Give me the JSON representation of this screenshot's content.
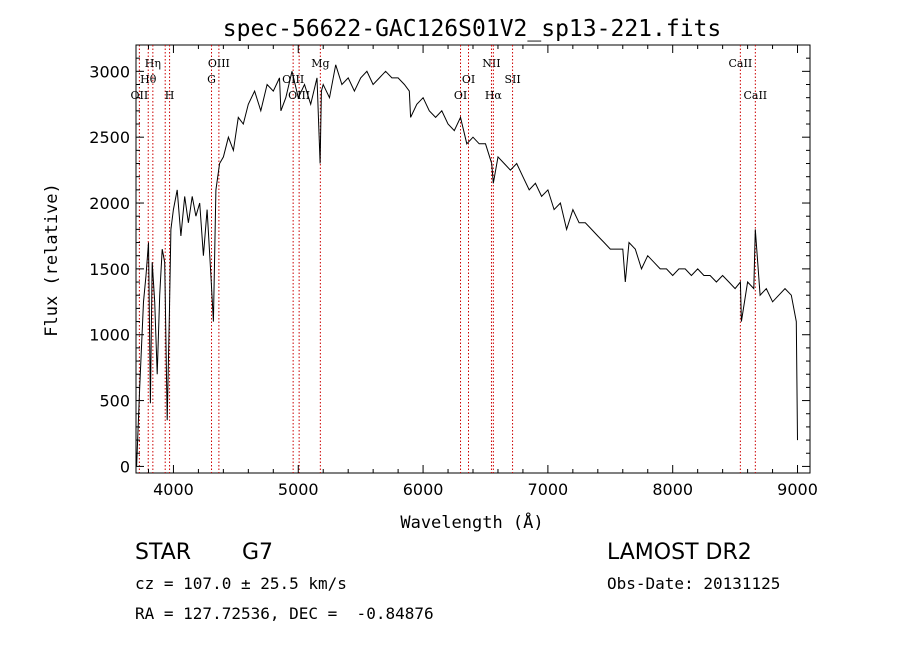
{
  "chart_data": {
    "type": "line",
    "title": "spec-56622-GAC126S01V2_sp13-221.fits",
    "xlabel": "Wavelength (Å)",
    "ylabel": "Flux (relative)",
    "xlim": [
      3700,
      9100
    ],
    "ylim": [
      -50,
      3200
    ],
    "xticks": [
      4000,
      5000,
      6000,
      7000,
      8000,
      9000
    ],
    "yticks": [
      0,
      500,
      1000,
      1500,
      2000,
      2500,
      3000
    ],
    "grid": false,
    "line_color": "#000000",
    "marker_color": "#cc0000",
    "series": [
      {
        "x": [
          3705,
          3730,
          3760,
          3780,
          3800,
          3815,
          3830,
          3850,
          3870,
          3890,
          3910,
          3930,
          3950,
          3968,
          3980,
          4000,
          4030,
          4060,
          4090,
          4120,
          4150,
          4180,
          4210,
          4240,
          4270,
          4300,
          4320,
          4340,
          4370,
          4400,
          4440,
          4480,
          4520,
          4560,
          4600,
          4650,
          4700,
          4750,
          4800,
          4850,
          4861,
          4900,
          4950,
          5000,
          5050,
          5100,
          5150,
          5175,
          5185,
          5200,
          5250,
          5300,
          5350,
          5400,
          5450,
          5500,
          5550,
          5600,
          5650,
          5700,
          5750,
          5800,
          5850,
          5890,
          5900,
          5950,
          6000,
          6050,
          6100,
          6150,
          6200,
          6250,
          6300,
          6350,
          6400,
          6450,
          6500,
          6550,
          6563,
          6600,
          6650,
          6700,
          6750,
          6800,
          6850,
          6900,
          6950,
          7000,
          7050,
          7100,
          7150,
          7200,
          7250,
          7300,
          7350,
          7400,
          7450,
          7500,
          7550,
          7600,
          7620,
          7650,
          7700,
          7750,
          7800,
          7850,
          7900,
          7950,
          8000,
          8050,
          8100,
          8150,
          8200,
          8250,
          8300,
          8350,
          8400,
          8450,
          8500,
          8542,
          8550,
          8600,
          8650,
          8662,
          8700,
          8750,
          8800,
          8850,
          8900,
          8950,
          8990,
          9000
        ],
        "y": [
          0,
          600,
          1250,
          1450,
          1700,
          480,
          1550,
          1250,
          700,
          1300,
          1650,
          1550,
          350,
          1200,
          1800,
          1950,
          2100,
          1750,
          2050,
          1850,
          2050,
          1900,
          2000,
          1600,
          1950,
          1450,
          1100,
          2100,
          2300,
          2350,
          2500,
          2400,
          2650,
          2600,
          2750,
          2850,
          2700,
          2900,
          2850,
          2950,
          2700,
          2800,
          3000,
          2800,
          2900,
          2750,
          2950,
          2300,
          2850,
          2900,
          2800,
          3050,
          2900,
          2950,
          2850,
          2950,
          3000,
          2900,
          2950,
          3000,
          2950,
          2950,
          2900,
          2850,
          2650,
          2750,
          2800,
          2700,
          2650,
          2700,
          2600,
          2550,
          2650,
          2450,
          2500,
          2450,
          2450,
          2300,
          2150,
          2350,
          2300,
          2250,
          2300,
          2200,
          2100,
          2150,
          2050,
          2100,
          1950,
          2000,
          1800,
          1950,
          1850,
          1850,
          1800,
          1750,
          1700,
          1650,
          1650,
          1650,
          1400,
          1700,
          1650,
          1500,
          1600,
          1550,
          1500,
          1500,
          1450,
          1500,
          1500,
          1450,
          1500,
          1450,
          1450,
          1400,
          1450,
          1400,
          1350,
          1400,
          1100,
          1400,
          1350,
          1800,
          1300,
          1350,
          1250,
          1300,
          1350,
          1300,
          1100,
          200
        ]
      }
    ],
    "lines": [
      {
        "x": 3727,
        "label": "OII",
        "row": 3
      },
      {
        "x": 3798,
        "label": "Hθ",
        "row": 2
      },
      {
        "x": 3835,
        "label": "Hη",
        "row": 1
      },
      {
        "x": 3934,
        "label": "",
        "row": 0
      },
      {
        "x": 3969,
        "label": "H",
        "row": 3
      },
      {
        "x": 4305,
        "label": "G",
        "row": 2
      },
      {
        "x": 4364,
        "label": "OIII",
        "row": 1
      },
      {
        "x": 4959,
        "label": "OIII",
        "row": 2
      },
      {
        "x": 5007,
        "label": "OIII",
        "row": 3
      },
      {
        "x": 5177,
        "label": "Mg",
        "row": 1
      },
      {
        "x": 6300,
        "label": "OI",
        "row": 3
      },
      {
        "x": 6364,
        "label": "OI",
        "row": 2
      },
      {
        "x": 6548,
        "label": "NII",
        "row": 1
      },
      {
        "x": 6563,
        "label": "Hα",
        "row": 3
      },
      {
        "x": 6717,
        "label": "SII",
        "row": 2
      },
      {
        "x": 8542,
        "label": "CaII",
        "row": 1
      },
      {
        "x": 8662,
        "label": "CaII",
        "row": 3
      }
    ]
  },
  "info": {
    "object_class": "STAR",
    "subclass": "G7",
    "survey": "LAMOST DR2",
    "cz": "cz = 107.0 ± 25.5 km/s",
    "obs_date": "Obs-Date: 20131125",
    "radec": "RA = 127.72536, DEC =  -0.84876"
  }
}
